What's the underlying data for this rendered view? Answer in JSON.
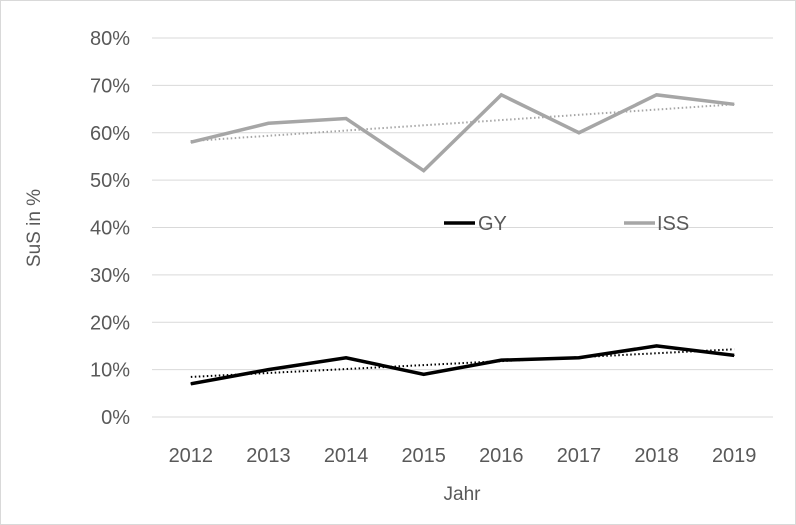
{
  "chart_data": {
    "type": "line",
    "title": "",
    "xlabel": "Jahr",
    "ylabel": "SuS in %",
    "categories": [
      "2012",
      "2013",
      "2014",
      "2015",
      "2016",
      "2017",
      "2018",
      "2019"
    ],
    "ylim": [
      0,
      80
    ],
    "yticks": [
      "0%",
      "10%",
      "20%",
      "30%",
      "40%",
      "50%",
      "60%",
      "70%",
      "80%"
    ],
    "grid": true,
    "legend_position": "center",
    "series": [
      {
        "name": "GY",
        "color": "#000000",
        "values": [
          7,
          10,
          12.5,
          9,
          12,
          12.5,
          15,
          13
        ],
        "trendline": "linear"
      },
      {
        "name": "ISS",
        "color": "#a6a6a6",
        "values": [
          58,
          62,
          63,
          52,
          68,
          60,
          68,
          66
        ],
        "trendline": "linear"
      }
    ]
  }
}
